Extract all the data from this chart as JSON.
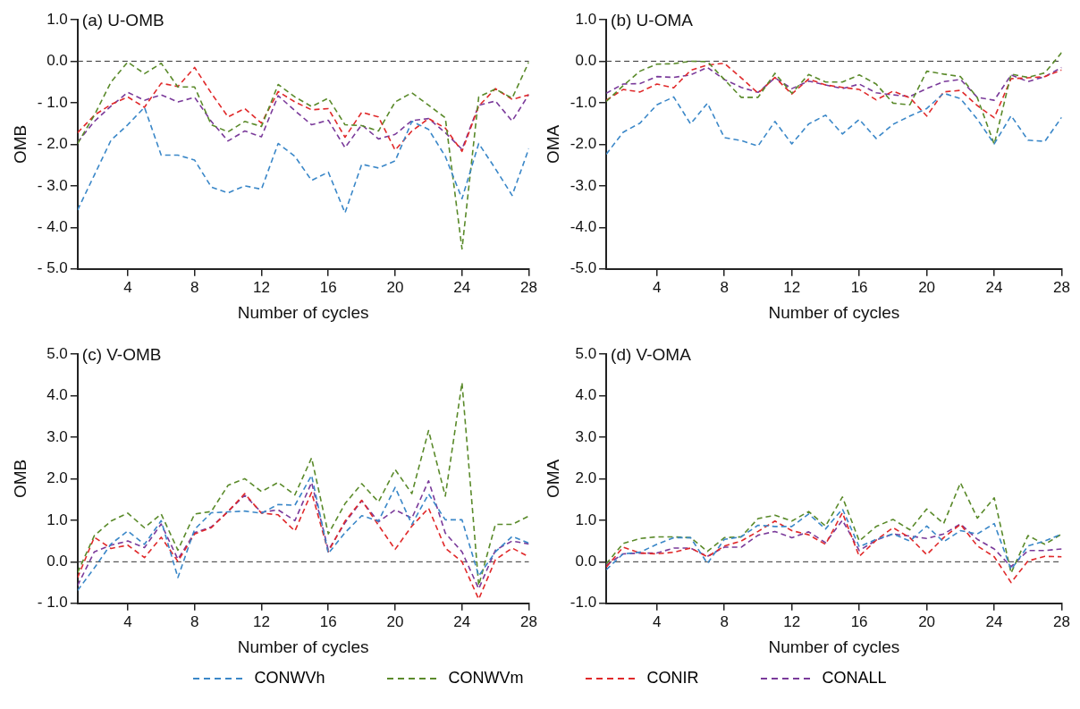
{
  "chart_data": [
    {
      "type": "line",
      "title": "(a) U-OMB",
      "xlabel": "Number of cycles",
      "ylabel": "OMB",
      "x": [
        1,
        2,
        3,
        4,
        5,
        6,
        7,
        8,
        9,
        10,
        11,
        12,
        13,
        14,
        15,
        16,
        17,
        18,
        19,
        20,
        21,
        22,
        23,
        24,
        25,
        26,
        27,
        28
      ],
      "xlim": [
        1,
        28
      ],
      "xticks": [
        4,
        8,
        12,
        16,
        20,
        24,
        28
      ],
      "ylim": [
        -5,
        1
      ],
      "yticks": [
        {
          "value": -5,
          "label": "- 5.0"
        },
        {
          "value": -4,
          "label": "- 4.0"
        },
        {
          "value": -3,
          "label": "- 3.0"
        },
        {
          "value": -2,
          "label": "- 2.0"
        },
        {
          "value": -1,
          "label": "- 1.0"
        },
        {
          "value": 0,
          "label": "0.0"
        },
        {
          "value": 1,
          "label": "1.0"
        }
      ],
      "grid": false,
      "legend": "bottom",
      "line_style": "dashed",
      "marker": "none",
      "ref_lines": [
        {
          "axis": "y",
          "value": 0,
          "color": "#333333",
          "line_style": "dashed"
        }
      ],
      "series": [
        {
          "name": "CONWVh",
          "color": "#3a87c8",
          "values": [
            -3.58,
            -2.74,
            -1.9,
            -1.53,
            -1.11,
            -2.26,
            -2.26,
            -2.38,
            -3.03,
            -3.17,
            -3.0,
            -3.08,
            -1.98,
            -2.29,
            -2.87,
            -2.67,
            -3.65,
            -2.48,
            -2.57,
            -2.4,
            -1.45,
            -1.64,
            -2.29,
            -3.31,
            -1.98,
            -2.59,
            -3.23,
            -2.1
          ]
        },
        {
          "name": "CONWVm",
          "color": "#5a8a2a",
          "values": [
            -1.98,
            -1.3,
            -0.5,
            -0.02,
            -0.3,
            -0.05,
            -0.62,
            -0.62,
            -1.53,
            -1.7,
            -1.45,
            -1.57,
            -0.56,
            -0.86,
            -1.09,
            -0.89,
            -1.53,
            -1.55,
            -1.68,
            -0.98,
            -0.76,
            -1.06,
            -1.36,
            -4.52,
            -0.86,
            -0.67,
            -0.89,
            -0.02
          ]
        },
        {
          "name": "CONIR",
          "color": "#e0292a",
          "values": [
            -1.72,
            -1.3,
            -1.04,
            -0.86,
            -1.11,
            -0.53,
            -0.61,
            -0.15,
            -0.77,
            -1.34,
            -1.14,
            -1.49,
            -0.73,
            -0.98,
            -1.17,
            -1.14,
            -1.83,
            -1.23,
            -1.34,
            -2.14,
            -1.68,
            -1.38,
            -1.61,
            -2.17,
            -1.08,
            -0.66,
            -0.92,
            -0.81
          ]
        },
        {
          "name": "CONALL",
          "color": "#7a3a9a",
          "values": [
            -1.95,
            -1.45,
            -1.08,
            -0.75,
            -0.94,
            -0.81,
            -0.98,
            -0.87,
            -1.45,
            -1.92,
            -1.68,
            -1.82,
            -0.83,
            -1.19,
            -1.53,
            -1.42,
            -2.08,
            -1.53,
            -1.87,
            -1.76,
            -1.43,
            -1.38,
            -1.72,
            -2.12,
            -1.06,
            -0.96,
            -1.44,
            -0.8
          ]
        }
      ]
    },
    {
      "type": "line",
      "title": "(b) U-OMA",
      "xlabel": "Number of cycles",
      "ylabel": "OMA",
      "x": [
        1,
        2,
        3,
        4,
        5,
        6,
        7,
        8,
        9,
        10,
        11,
        12,
        13,
        14,
        15,
        16,
        17,
        18,
        19,
        20,
        21,
        22,
        23,
        24,
        25,
        26,
        27,
        28
      ],
      "xlim": [
        1,
        28
      ],
      "xticks": [
        4,
        8,
        12,
        16,
        20,
        24,
        28
      ],
      "ylim": [
        -5,
        1
      ],
      "yticks": [
        {
          "value": -5,
          "label": "-5.0"
        },
        {
          "value": -4,
          "label": "-4.0"
        },
        {
          "value": -3,
          "label": "-3.0"
        },
        {
          "value": -2,
          "label": "-2.0"
        },
        {
          "value": -1,
          "label": "-1.0"
        },
        {
          "value": 0,
          "label": "0.0"
        },
        {
          "value": 1,
          "label": "1.0"
        }
      ],
      "grid": false,
      "line_style": "dashed",
      "marker": "none",
      "ref_lines": [
        {
          "axis": "y",
          "value": 0,
          "color": "#333333",
          "line_style": "dashed"
        }
      ],
      "series": [
        {
          "color": "#3a87c8",
          "values": [
            -2.24,
            -1.71,
            -1.49,
            -1.05,
            -0.86,
            -1.51,
            -1.01,
            -1.84,
            -1.91,
            -2.04,
            -1.45,
            -1.99,
            -1.51,
            -1.3,
            -1.75,
            -1.4,
            -1.86,
            -1.52,
            -1.32,
            -1.14,
            -0.77,
            -0.9,
            -1.4,
            -1.99,
            -1.31,
            -1.9,
            -1.93,
            -1.35
          ]
        },
        {
          "color": "#5a8a2a",
          "values": [
            -0.97,
            -0.59,
            -0.24,
            -0.07,
            -0.06,
            0.0,
            -0.01,
            -0.44,
            -0.87,
            -0.87,
            -0.29,
            -0.77,
            -0.32,
            -0.5,
            -0.5,
            -0.33,
            -0.55,
            -1.01,
            -1.05,
            -0.24,
            -0.31,
            -0.37,
            -0.88,
            -2.0,
            -0.31,
            -0.39,
            -0.28,
            0.21
          ]
        },
        {
          "color": "#e0292a",
          "values": [
            -0.94,
            -0.68,
            -0.74,
            -0.55,
            -0.64,
            -0.22,
            -0.09,
            -0.05,
            -0.4,
            -0.77,
            -0.39,
            -0.79,
            -0.43,
            -0.57,
            -0.63,
            -0.68,
            -0.93,
            -0.72,
            -0.88,
            -1.32,
            -0.74,
            -0.7,
            -1.07,
            -1.36,
            -0.42,
            -0.4,
            -0.37,
            -0.21
          ]
        },
        {
          "color": "#7a3a9a",
          "values": [
            -0.77,
            -0.55,
            -0.54,
            -0.37,
            -0.39,
            -0.33,
            -0.15,
            -0.44,
            -0.63,
            -0.75,
            -0.4,
            -0.66,
            -0.48,
            -0.57,
            -0.66,
            -0.55,
            -0.76,
            -0.81,
            -0.85,
            -0.66,
            -0.49,
            -0.44,
            -0.87,
            -0.94,
            -0.33,
            -0.49,
            -0.37,
            -0.15
          ]
        }
      ]
    },
    {
      "type": "line",
      "title": "(c) V-OMB",
      "xlabel": "Number of cycles",
      "ylabel": "OMB",
      "x": [
        1,
        2,
        3,
        4,
        5,
        6,
        7,
        8,
        9,
        10,
        11,
        12,
        13,
        14,
        15,
        16,
        17,
        18,
        19,
        20,
        21,
        22,
        23,
        24,
        25,
        26,
        27,
        28
      ],
      "xlim": [
        1,
        28
      ],
      "xticks": [
        4,
        8,
        12,
        16,
        20,
        24,
        28
      ],
      "ylim": [
        -1,
        5
      ],
      "yticks": [
        {
          "value": -1,
          "label": "- 1.0"
        },
        {
          "value": 0,
          "label": "0.0"
        },
        {
          "value": 1,
          "label": "1.0"
        },
        {
          "value": 2,
          "label": "2.0"
        },
        {
          "value": 3,
          "label": "3.0"
        },
        {
          "value": 4,
          "label": "4.0"
        },
        {
          "value": 5,
          "label": "5.0"
        }
      ],
      "grid": false,
      "line_style": "dashed",
      "marker": "none",
      "ref_lines": [
        {
          "axis": "y",
          "value": 0,
          "color": "#333333",
          "line_style": "dashed"
        }
      ],
      "series": [
        {
          "color": "#3a87c8",
          "values": [
            -0.69,
            -0.15,
            0.43,
            0.74,
            0.42,
            0.99,
            -0.38,
            0.78,
            1.18,
            1.2,
            1.22,
            1.17,
            1.38,
            1.36,
            2.08,
            0.2,
            0.7,
            1.11,
            0.98,
            1.79,
            0.9,
            1.63,
            1.01,
            1.01,
            -0.34,
            0.24,
            0.61,
            0.45
          ]
        },
        {
          "color": "#5a8a2a",
          "values": [
            -0.26,
            0.63,
            0.98,
            1.17,
            0.82,
            1.15,
            0.28,
            1.15,
            1.21,
            1.84,
            2.0,
            1.69,
            1.91,
            1.61,
            2.5,
            0.67,
            1.4,
            1.88,
            1.44,
            2.22,
            1.64,
            3.16,
            1.58,
            4.31,
            -0.57,
            0.9,
            0.9,
            1.1
          ]
        },
        {
          "color": "#e0292a",
          "values": [
            -0.38,
            0.59,
            0.32,
            0.4,
            0.1,
            0.59,
            0.01,
            0.67,
            0.82,
            1.21,
            1.64,
            1.17,
            1.13,
            0.74,
            1.67,
            0.24,
            0.98,
            1.48,
            0.88,
            0.3,
            0.86,
            1.29,
            0.33,
            0.0,
            -0.9,
            0.05,
            0.33,
            0.12
          ]
        },
        {
          "color": "#7a3a9a",
          "values": [
            -0.57,
            0.24,
            0.4,
            0.5,
            0.34,
            0.91,
            0.06,
            0.7,
            0.84,
            1.21,
            1.6,
            1.19,
            1.25,
            0.99,
            1.91,
            0.28,
            0.94,
            1.47,
            0.96,
            1.25,
            1.05,
            1.95,
            0.69,
            0.24,
            -0.65,
            0.28,
            0.5,
            0.43
          ]
        }
      ]
    },
    {
      "type": "line",
      "title": "(d) V-OMA",
      "xlabel": "Number of cycles",
      "ylabel": "OMA",
      "x": [
        1,
        2,
        3,
        4,
        5,
        6,
        7,
        8,
        9,
        10,
        11,
        12,
        13,
        14,
        15,
        16,
        17,
        18,
        19,
        20,
        21,
        22,
        23,
        24,
        25,
        26,
        27,
        28
      ],
      "xlim": [
        1,
        28
      ],
      "xticks": [
        4,
        8,
        12,
        16,
        20,
        24,
        28
      ],
      "ylim": [
        -1,
        5
      ],
      "yticks": [
        {
          "value": -1,
          "label": "-1.0"
        },
        {
          "value": 0,
          "label": "0.0"
        },
        {
          "value": 1,
          "label": "1.0"
        },
        {
          "value": 2,
          "label": "2.0"
        },
        {
          "value": 3,
          "label": "3.0"
        },
        {
          "value": 4,
          "label": "4.0"
        },
        {
          "value": 5,
          "label": "5.0"
        }
      ],
      "grid": false,
      "line_style": "dashed",
      "marker": "none",
      "ref_lines": [
        {
          "axis": "y",
          "value": 0,
          "color": "#333333",
          "line_style": "dashed"
        }
      ],
      "series": [
        {
          "color": "#3a87c8",
          "values": [
            -0.19,
            0.19,
            0.23,
            0.42,
            0.58,
            0.58,
            -0.04,
            0.54,
            0.6,
            0.88,
            0.85,
            0.85,
            1.15,
            0.79,
            1.27,
            0.36,
            0.54,
            0.67,
            0.5,
            0.86,
            0.48,
            0.75,
            0.67,
            0.92,
            -0.19,
            0.38,
            0.5,
            0.67
          ]
        },
        {
          "color": "#5a8a2a",
          "values": [
            -0.05,
            0.44,
            0.56,
            0.6,
            0.6,
            0.58,
            0.25,
            0.58,
            0.6,
            1.04,
            1.12,
            0.98,
            1.21,
            0.86,
            1.56,
            0.5,
            0.85,
            1.02,
            0.77,
            1.27,
            0.92,
            1.9,
            1.05,
            1.54,
            -0.27,
            0.63,
            0.42,
            0.67
          ]
        },
        {
          "color": "#e0292a",
          "values": [
            -0.13,
            0.35,
            0.21,
            0.19,
            0.23,
            0.33,
            0.12,
            0.38,
            0.5,
            0.73,
            0.98,
            0.75,
            0.65,
            0.42,
            1.18,
            0.13,
            0.52,
            0.82,
            0.58,
            0.17,
            0.58,
            0.9,
            0.38,
            0.12,
            -0.5,
            0.02,
            0.13,
            0.12
          ]
        },
        {
          "color": "#7a3a9a",
          "values": [
            -0.08,
            0.19,
            0.21,
            0.21,
            0.33,
            0.33,
            0.13,
            0.35,
            0.35,
            0.64,
            0.73,
            0.58,
            0.72,
            0.46,
            1.0,
            0.27,
            0.52,
            0.67,
            0.62,
            0.56,
            0.67,
            0.91,
            0.54,
            0.31,
            -0.12,
            0.27,
            0.27,
            0.31
          ]
        }
      ]
    }
  ]
}
